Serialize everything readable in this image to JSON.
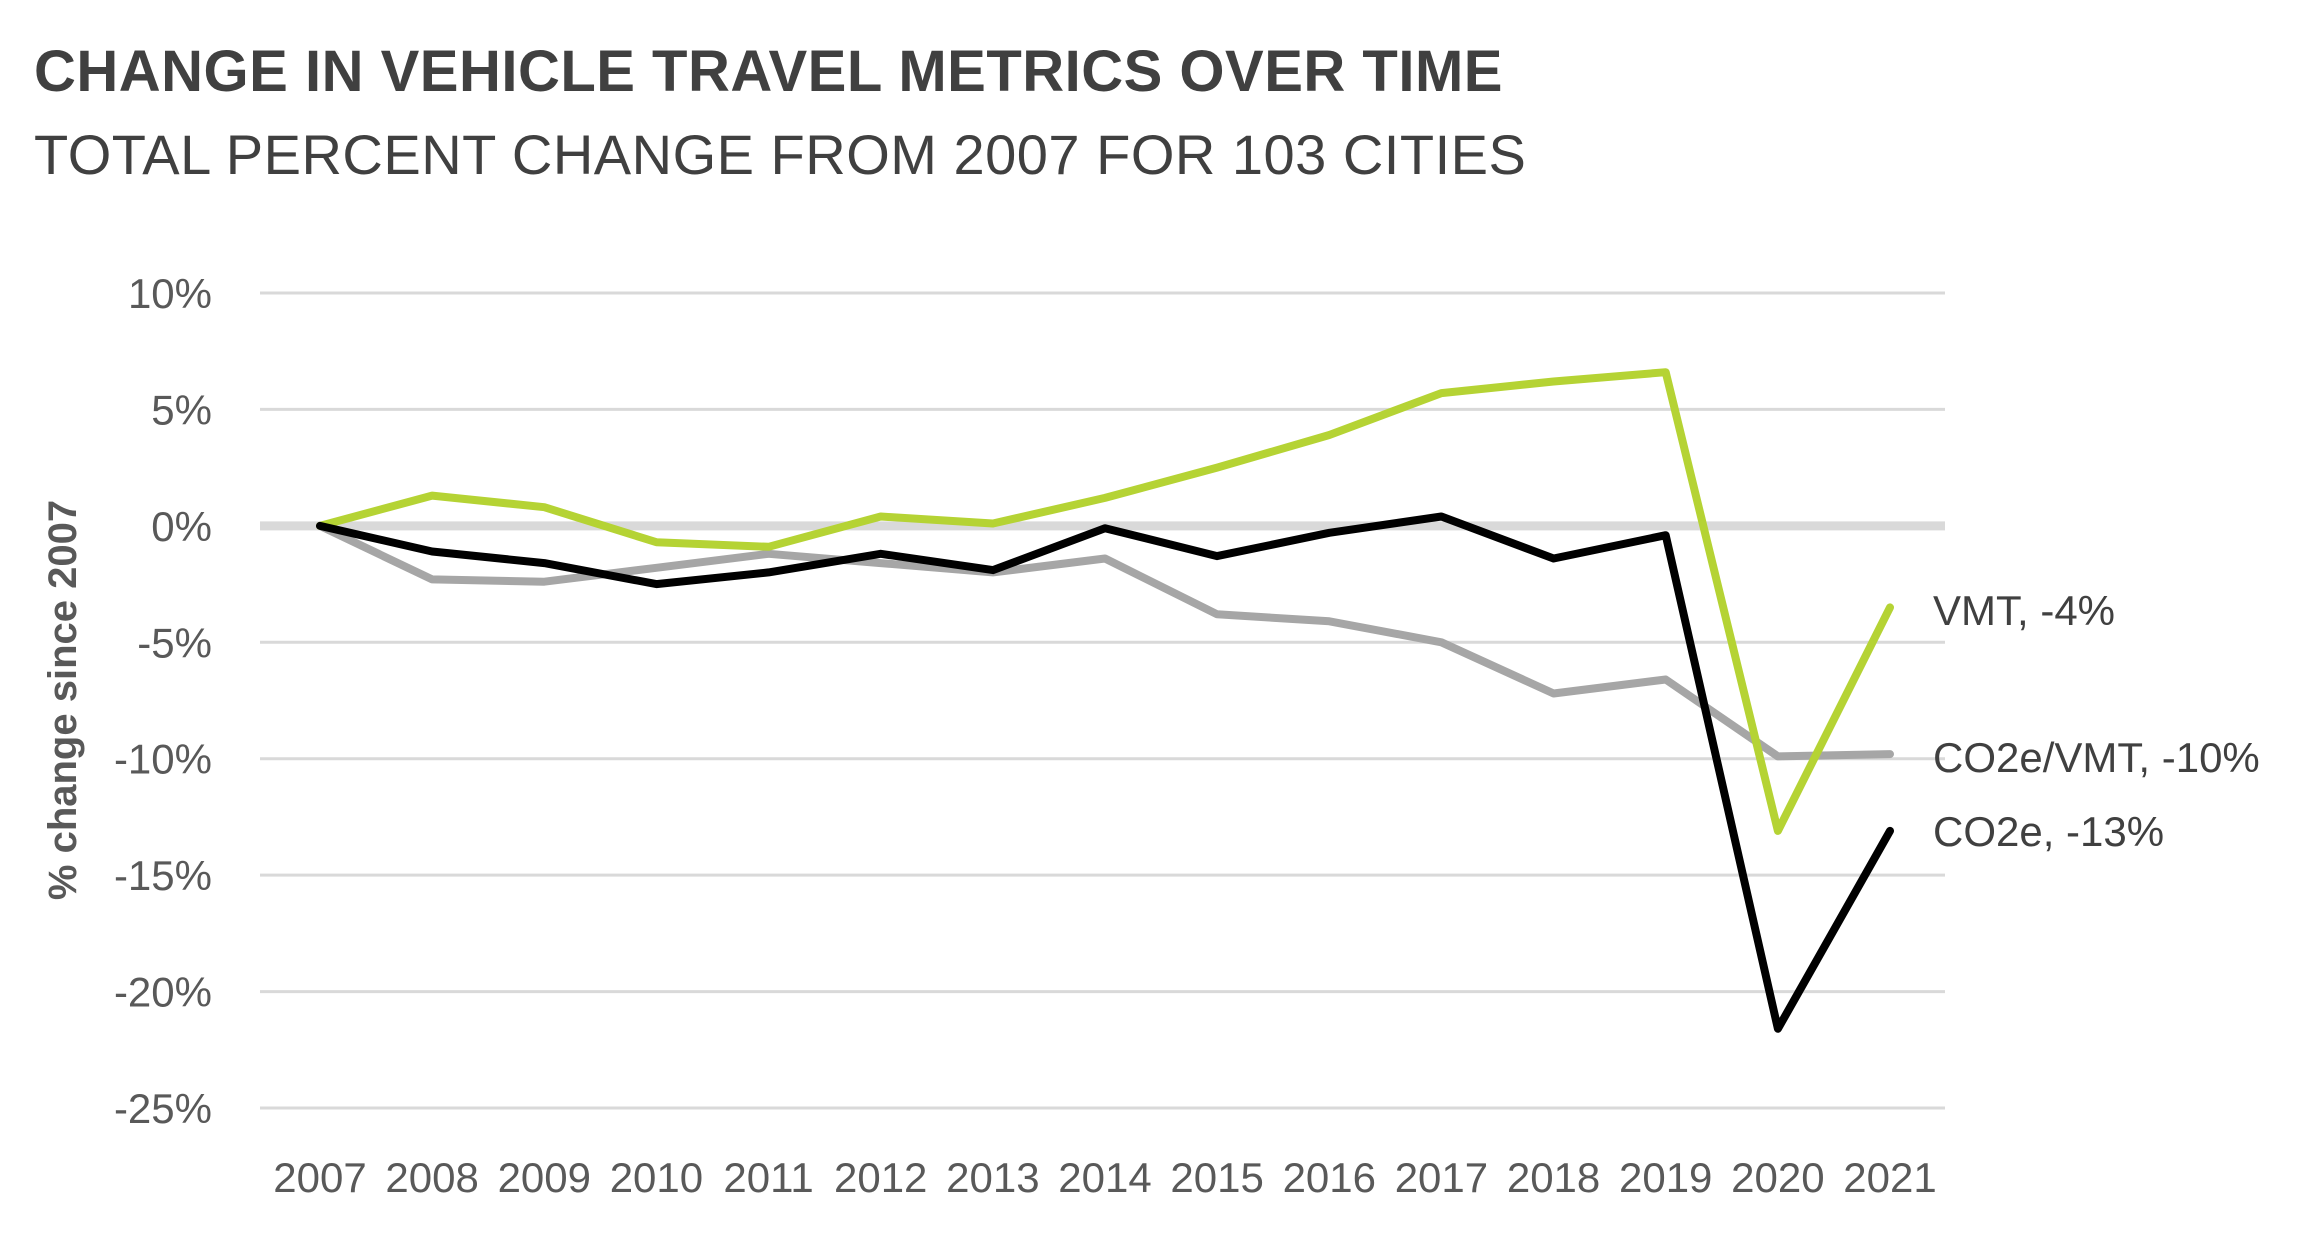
{
  "chart_data": {
    "type": "line",
    "title": "CHANGE IN VEHICLE TRAVEL METRICS OVER TIME",
    "subtitle": "TOTAL PERCENT CHANGE FROM 2007 FOR 103 CITIES",
    "ylabel": "% change since 2007",
    "xlabel": "",
    "ylim": [
      -25,
      10
    ],
    "yticks": [
      10,
      5,
      0,
      -5,
      -10,
      -15,
      -20,
      -25
    ],
    "ytick_labels": [
      "10%",
      "5%",
      "0%",
      "-5%",
      "-10%",
      "-15%",
      "-20%",
      "-25%"
    ],
    "categories": [
      "2007",
      "2008",
      "2009",
      "2010",
      "2011",
      "2012",
      "2013",
      "2014",
      "2015",
      "2016",
      "2017",
      "2018",
      "2019",
      "2020",
      "2021"
    ],
    "grid": true,
    "series": [
      {
        "name": "CO2e/VMT",
        "end_label": "CO2e/VMT, -10%",
        "color": "#A6A6A6",
        "values": [
          0,
          -2.3,
          -2.4,
          -1.8,
          -1.2,
          -1.6,
          -2.0,
          -1.4,
          -3.8,
          -4.1,
          -5.0,
          -7.2,
          -6.6,
          -9.9,
          -9.8
        ]
      },
      {
        "name": "VMT",
        "end_label": "VMT, -4%",
        "color": "#B5D334",
        "values": [
          0,
          1.3,
          0.8,
          -0.7,
          -0.9,
          0.4,
          0.1,
          1.2,
          2.5,
          3.9,
          5.7,
          6.2,
          6.6,
          -13.1,
          -3.5
        ]
      },
      {
        "name": "CO2e",
        "end_label": "CO2e, -13%",
        "color": "#000000",
        "values": [
          0,
          -1.1,
          -1.6,
          -2.5,
          -2.0,
          -1.2,
          -1.9,
          -0.1,
          -1.3,
          -0.3,
          0.4,
          -1.4,
          -0.4,
          -21.6,
          -13.1
        ]
      }
    ]
  }
}
